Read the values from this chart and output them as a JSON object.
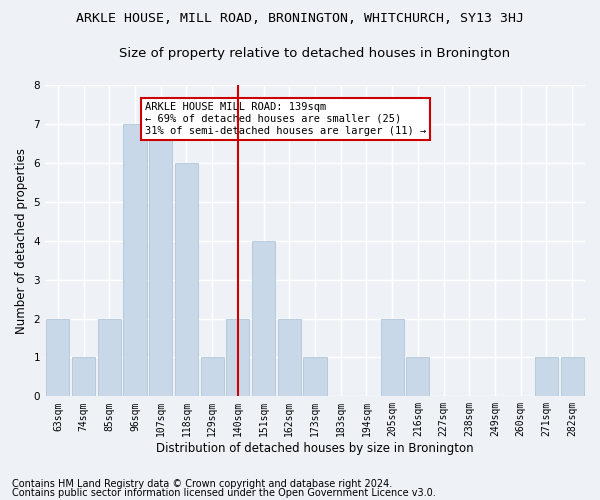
{
  "title": "ARKLE HOUSE, MILL ROAD, BRONINGTON, WHITCHURCH, SY13 3HJ",
  "subtitle": "Size of property relative to detached houses in Bronington",
  "xlabel": "Distribution of detached houses by size in Bronington",
  "ylabel": "Number of detached properties",
  "categories": [
    "63sqm",
    "74sqm",
    "85sqm",
    "96sqm",
    "107sqm",
    "118sqm",
    "129sqm",
    "140sqm",
    "151sqm",
    "162sqm",
    "173sqm",
    "183sqm",
    "194sqm",
    "205sqm",
    "216sqm",
    "227sqm",
    "238sqm",
    "249sqm",
    "260sqm",
    "271sqm",
    "282sqm"
  ],
  "values": [
    2,
    1,
    2,
    7,
    7,
    6,
    1,
    2,
    4,
    2,
    1,
    0,
    0,
    2,
    1,
    0,
    0,
    0,
    0,
    1,
    1
  ],
  "bar_color": "#c8d8e8",
  "bar_edgecolor": "#a8bfd0",
  "highlight_index": 7,
  "highlight_color": "#cc0000",
  "annotation_text": "ARKLE HOUSE MILL ROAD: 139sqm\n← 69% of detached houses are smaller (25)\n31% of semi-detached houses are larger (11) →",
  "annotation_box_color": "white",
  "annotation_box_edgecolor": "#cc0000",
  "ylim": [
    0,
    8
  ],
  "yticks": [
    0,
    1,
    2,
    3,
    4,
    5,
    6,
    7,
    8
  ],
  "footer_line1": "Contains HM Land Registry data © Crown copyright and database right 2024.",
  "footer_line2": "Contains public sector information licensed under the Open Government Licence v3.0.",
  "background_color": "#eef2f7",
  "grid_color": "white",
  "title_fontsize": 9.5,
  "subtitle_fontsize": 9.5,
  "axis_label_fontsize": 8.5,
  "tick_fontsize": 7,
  "annotation_fontsize": 7.5,
  "footer_fontsize": 7
}
